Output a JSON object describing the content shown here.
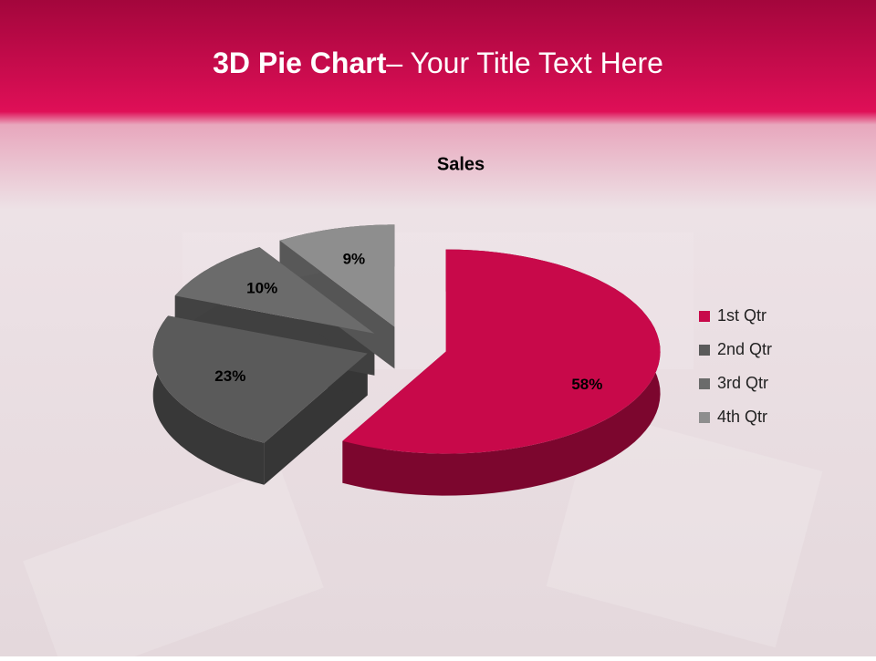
{
  "slide": {
    "title_bold": "3D Pie Chart",
    "title_rest": "– Your Title Text Here"
  },
  "chart_data": {
    "type": "pie",
    "title": "Sales",
    "categories": [
      "1st Qtr",
      "2nd Qtr",
      "3rd Qtr",
      "4th Qtr"
    ],
    "values": [
      58,
      23,
      10,
      9
    ],
    "value_labels": [
      "58%",
      "23%",
      "10%",
      "9%"
    ],
    "colors": [
      "#c8094a",
      "#5a5a5a",
      "#6b6b6b",
      "#8e8e8e"
    ],
    "legend": "right"
  }
}
